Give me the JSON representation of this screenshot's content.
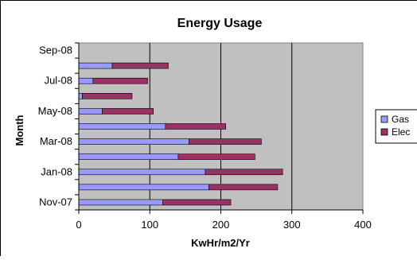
{
  "chart_data": {
    "type": "bar",
    "orientation": "horizontal",
    "stacked": true,
    "title": "Energy Usage",
    "subtitle": "",
    "xlabel": "KwHr/m2/Yr",
    "ylabel": "Month",
    "xlim": [
      0,
      400
    ],
    "x_ticks": [
      0,
      100,
      200,
      300,
      400
    ],
    "categories": [
      "Nov-07",
      "Dec-07",
      "Jan-08",
      "Feb-08",
      "Mar-08",
      "Apr-08",
      "May-08",
      "Jun-08",
      "Jul-08",
      "Aug-08",
      "Sep-08"
    ],
    "y_tick_labels": [
      "Nov-07",
      "Jan-08",
      "Mar-08",
      "May-08",
      "Jul-08",
      "Sep-08"
    ],
    "series": [
      {
        "name": "Gas",
        "color": "#9999ff",
        "values": [
          118,
          183,
          178,
          140,
          155,
          122,
          33,
          5,
          20,
          47,
          0
        ]
      },
      {
        "name": "Elec",
        "color": "#993366",
        "values": [
          96,
          97,
          109,
          108,
          102,
          85,
          72,
          70,
          77,
          79,
          0
        ]
      }
    ],
    "legend_position": "right",
    "grid": {
      "x_major": true,
      "y_major": false
    },
    "plot_background": "#c0c0c0",
    "gridline_color": "#000000"
  }
}
